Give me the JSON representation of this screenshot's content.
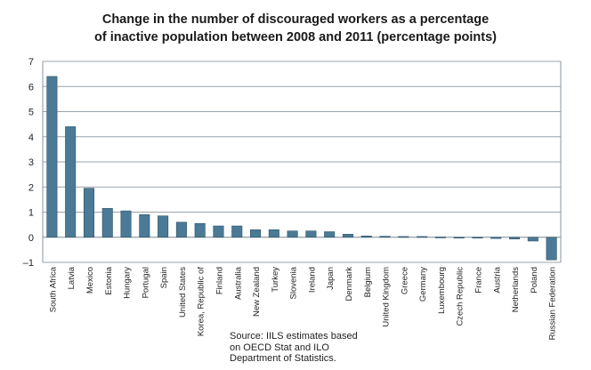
{
  "chart_data": {
    "type": "bar",
    "title_lines": [
      "Change in the number of discouraged workers as a percentage",
      "of inactive population between 2008 and 2011 (percentage points)"
    ],
    "categories": [
      "South Africa",
      "Latvia",
      "Mexico",
      "Estonia",
      "Hungary",
      "Portugal",
      "Spain",
      "United States",
      "Korea, Republic of",
      "Finland",
      "Australia",
      "New Zealand",
      "Turkey",
      "Slovenia",
      "Ireland",
      "Japan",
      "Denmark",
      "Belgium",
      "United Kingdom",
      "Greece",
      "Germany",
      "Luxembourg",
      "Czech Republic",
      "France",
      "Austria",
      "Netherlands",
      "Poland",
      "Russian Federation"
    ],
    "values": [
      6.4,
      4.4,
      1.95,
      1.15,
      1.05,
      0.9,
      0.85,
      0.6,
      0.55,
      0.45,
      0.45,
      0.3,
      0.3,
      0.25,
      0.25,
      0.22,
      0.12,
      0.05,
      0.04,
      0.03,
      0.03,
      0.01,
      -0.01,
      -0.02,
      -0.05,
      -0.07,
      -0.15,
      -0.9
    ],
    "ylim": [
      -1,
      7
    ],
    "yticks": [
      -1,
      0,
      1,
      2,
      3,
      4,
      5,
      6,
      7
    ],
    "grid": true,
    "bar_color": "#4a7a96",
    "grid_color": "#9aa4ad",
    "xlabel": "",
    "ylabel": ""
  },
  "source_lines": [
    "Source: IILS estimates based",
    "on OECD Stat and ILO",
    "Department of Statistics."
  ]
}
